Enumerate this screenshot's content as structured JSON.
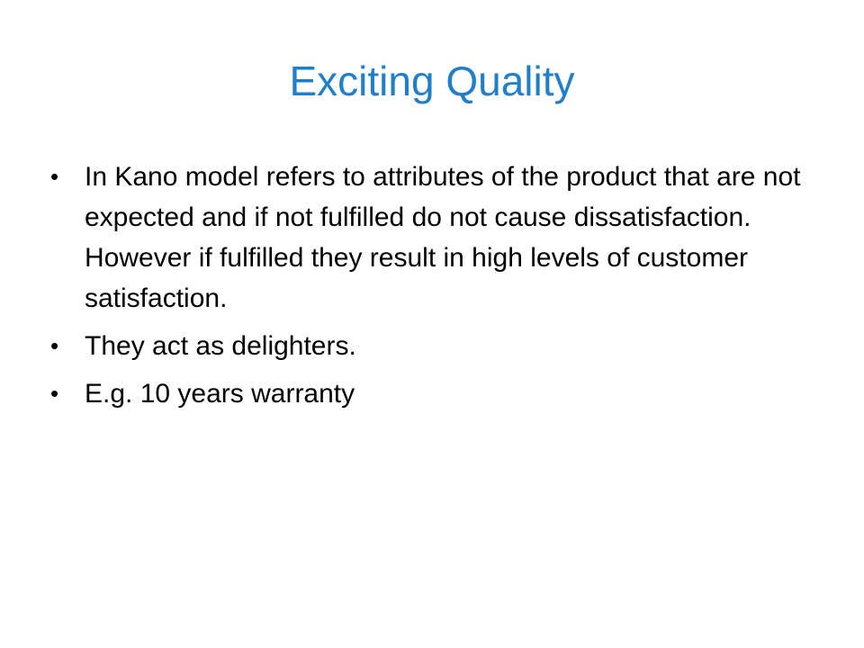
{
  "colors": {
    "title": "#1F7FC9",
    "text": "#000000",
    "background": "#FFFFFF"
  },
  "slide": {
    "title": "Exciting Quality",
    "bullets": [
      {
        "marker": "•",
        "text": "In Kano model refers to attributes of the product that are not expected and if not fulfilled do not cause dissatisfaction. However if fulfilled they result in high levels of customer satisfaction."
      },
      {
        "marker": "•",
        "text": "They act as delighters."
      },
      {
        "marker": "•",
        "text": "E.g. 10 years warranty"
      }
    ]
  }
}
